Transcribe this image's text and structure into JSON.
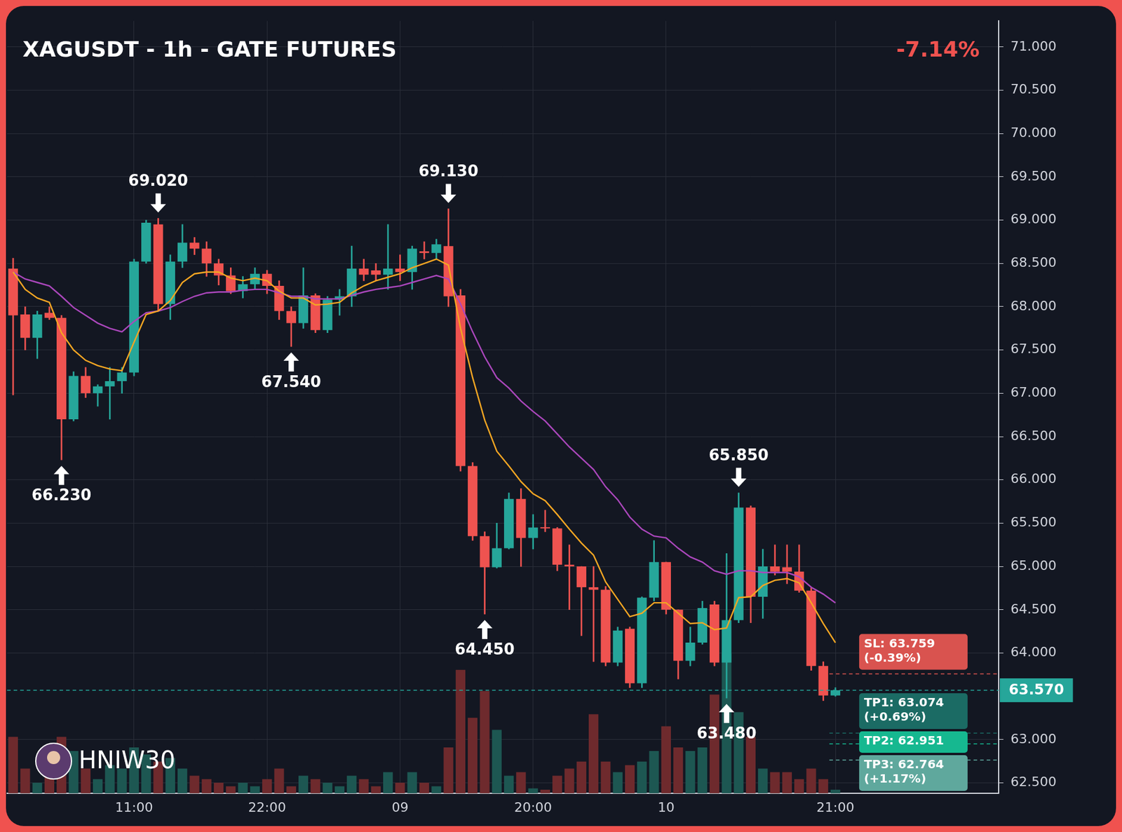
{
  "chart_data": {
    "type": "candlestick",
    "title": "XAGUSDT - 1h - GATE FUTURES",
    "change_label": "-7.14%",
    "watermark": "HNIW30",
    "categories": [
      null,
      null,
      null,
      null,
      null,
      null,
      null,
      null,
      null,
      null,
      "11:00",
      null,
      null,
      null,
      null,
      null,
      null,
      null,
      null,
      null,
      null,
      "22:00",
      null,
      null,
      null,
      null,
      null,
      null,
      null,
      null,
      null,
      null,
      "09",
      null,
      null,
      null,
      null,
      null,
      null,
      null,
      null,
      null,
      null,
      "20:00",
      null,
      null,
      null,
      null,
      null,
      null,
      null,
      null,
      null,
      null,
      "10",
      null,
      null,
      null,
      null,
      null,
      null,
      null,
      null,
      null,
      null,
      null,
      null,
      null,
      "21:00",
      null,
      null,
      null,
      null,
      null,
      null,
      null,
      null,
      null,
      null,
      null,
      null,
      null
    ],
    "series": [
      {
        "type": "candlestick",
        "open": [
          68.44,
          67.91,
          67.64,
          67.93,
          67.87,
          66.7,
          67.2,
          67.0,
          67.08,
          67.14,
          67.24,
          68.52,
          68.95,
          68.03,
          68.52,
          68.74,
          68.67,
          68.5,
          68.36,
          68.18,
          68.26,
          68.38,
          68.24,
          67.95,
          67.81,
          68.13,
          67.73,
          68.08,
          68.12,
          68.44,
          68.42,
          68.37,
          68.44,
          68.4,
          68.64,
          68.62,
          68.7,
          68.13,
          66.16,
          65.35,
          64.99,
          65.21,
          65.78,
          65.33,
          65.45,
          65.44,
          65.02,
          65.0,
          64.76,
          64.73,
          63.89,
          64.28,
          63.65,
          64.64,
          65.05,
          64.5,
          63.91,
          64.12,
          64.56,
          63.89,
          64.38,
          65.68,
          64.65,
          65.0,
          64.99,
          64.94,
          64.72,
          63.85,
          63.51,
          null,
          null,
          null,
          null,
          null,
          null,
          null,
          null,
          null,
          null,
          null,
          null,
          null
        ],
        "high": [
          68.56,
          68.0,
          67.95,
          68.0,
          67.9,
          67.25,
          67.3,
          67.1,
          67.3,
          67.3,
          68.55,
          69.0,
          69.02,
          68.6,
          68.95,
          68.8,
          68.75,
          68.55,
          68.45,
          68.35,
          68.45,
          68.42,
          68.3,
          68.0,
          68.45,
          68.15,
          68.12,
          68.2,
          68.7,
          68.55,
          68.5,
          68.95,
          68.6,
          68.7,
          68.75,
          68.78,
          69.13,
          68.2,
          66.2,
          65.4,
          65.5,
          65.85,
          65.9,
          65.6,
          65.65,
          65.45,
          65.25,
          65.0,
          65.0,
          64.77,
          64.3,
          64.3,
          64.65,
          65.3,
          65.05,
          64.5,
          64.3,
          64.6,
          64.6,
          65.15,
          65.85,
          65.7,
          65.2,
          65.25,
          65.25,
          65.25,
          64.75,
          63.9,
          63.6,
          null,
          null,
          null,
          null,
          null,
          null,
          null,
          null,
          null,
          null,
          null,
          null,
          null
        ],
        "low": [
          66.98,
          67.5,
          67.4,
          67.85,
          66.23,
          66.68,
          66.95,
          66.85,
          66.7,
          67.0,
          67.2,
          68.5,
          67.95,
          67.85,
          68.45,
          68.6,
          68.35,
          68.25,
          68.15,
          68.1,
          68.2,
          68.15,
          67.85,
          67.54,
          67.75,
          67.7,
          67.7,
          67.9,
          68.0,
          68.3,
          68.3,
          68.2,
          68.3,
          68.2,
          68.55,
          68.55,
          68.0,
          66.1,
          65.3,
          64.45,
          64.98,
          65.2,
          65.0,
          65.2,
          65.4,
          64.95,
          64.5,
          64.2,
          63.9,
          63.85,
          63.85,
          63.6,
          63.6,
          64.6,
          64.45,
          63.7,
          63.85,
          64.1,
          63.85,
          63.48,
          64.35,
          64.35,
          64.4,
          64.9,
          64.8,
          64.7,
          63.8,
          63.45,
          63.5,
          null,
          null,
          null,
          null,
          null,
          null,
          null,
          null,
          null,
          null,
          null,
          null,
          null
        ],
        "close": [
          67.9,
          67.64,
          67.91,
          67.87,
          66.7,
          67.2,
          67.0,
          67.08,
          67.14,
          67.24,
          68.52,
          68.97,
          68.03,
          68.52,
          68.74,
          68.67,
          68.5,
          68.36,
          68.18,
          68.26,
          68.38,
          68.24,
          67.95,
          67.81,
          68.13,
          67.73,
          68.08,
          68.12,
          68.44,
          68.37,
          68.37,
          68.44,
          68.4,
          68.67,
          68.62,
          68.72,
          68.12,
          66.16,
          65.35,
          64.99,
          65.21,
          65.78,
          65.33,
          65.45,
          65.44,
          65.02,
          65.0,
          64.76,
          64.73,
          63.89,
          64.26,
          63.65,
          64.64,
          65.05,
          64.5,
          63.91,
          64.12,
          64.52,
          63.89,
          64.38,
          65.68,
          64.65,
          65.0,
          64.94,
          64.94,
          64.72,
          63.85,
          63.51,
          63.57,
          null,
          null,
          null,
          null,
          null,
          null,
          null,
          null,
          null,
          null,
          null,
          null,
          null
        ]
      },
      {
        "type": "bar",
        "axis": "y2",
        "values": [
          80,
          35,
          15,
          25,
          80,
          60,
          35,
          20,
          40,
          35,
          65,
          55,
          45,
          50,
          35,
          25,
          20,
          15,
          10,
          15,
          10,
          20,
          35,
          10,
          25,
          20,
          15,
          10,
          25,
          20,
          10,
          30,
          15,
          30,
          15,
          10,
          65,
          175,
          107,
          145,
          90,
          25,
          30,
          7,
          5,
          25,
          35,
          45,
          112,
          45,
          30,
          40,
          45,
          60,
          95,
          65,
          60,
          65,
          140,
          198,
          115,
          80,
          35,
          30,
          30,
          20,
          35,
          20,
          5,
          null,
          null,
          null,
          null,
          null,
          null,
          null,
          null,
          null,
          null,
          null,
          null,
          null
        ]
      },
      {
        "type": "line",
        "color": "#f5a623",
        "values": [
          68.4,
          68.2,
          68.1,
          68.05,
          67.7,
          67.5,
          67.38,
          67.32,
          67.28,
          67.26,
          67.59,
          67.91,
          67.95,
          68.07,
          68.28,
          68.38,
          68.4,
          68.4,
          68.33,
          68.3,
          68.33,
          68.3,
          68.18,
          68.1,
          68.1,
          68.02,
          68.03,
          68.05,
          68.16,
          68.24,
          68.3,
          68.34,
          68.38,
          68.45,
          68.5,
          68.55,
          68.48,
          67.75,
          67.18,
          66.69,
          66.33,
          66.16,
          65.98,
          65.84,
          65.76,
          65.6,
          65.43,
          65.27,
          65.13,
          64.82,
          64.62,
          64.42,
          64.46,
          64.58,
          64.58,
          64.46,
          64.34,
          64.35,
          64.27,
          64.29,
          64.64,
          64.65,
          64.78,
          64.84,
          64.86,
          64.81,
          64.58,
          64.34,
          64.12,
          null,
          null,
          null,
          null,
          null,
          null,
          null,
          null,
          null,
          null,
          null,
          null,
          null
        ]
      },
      {
        "type": "line",
        "color": "#ab47bc",
        "values": [
          68.4,
          68.32,
          68.28,
          68.24,
          68.12,
          67.99,
          67.9,
          67.81,
          67.75,
          67.71,
          67.83,
          67.93,
          67.95,
          67.99,
          68.06,
          68.12,
          68.16,
          68.17,
          68.17,
          68.19,
          68.2,
          68.2,
          68.16,
          68.12,
          68.12,
          68.09,
          68.09,
          68.09,
          68.13,
          68.17,
          68.2,
          68.22,
          68.24,
          68.28,
          68.32,
          68.36,
          68.32,
          68.03,
          67.71,
          67.42,
          67.18,
          67.06,
          66.91,
          66.79,
          66.68,
          66.53,
          66.38,
          66.25,
          66.12,
          65.92,
          65.77,
          65.57,
          65.43,
          65.35,
          65.33,
          65.21,
          65.11,
          65.05,
          64.95,
          64.91,
          64.95,
          64.95,
          64.93,
          64.93,
          64.93,
          64.88,
          64.76,
          64.68,
          64.58,
          null,
          null,
          null,
          null,
          null,
          null,
          null,
          null,
          null,
          null,
          null,
          null,
          null
        ]
      }
    ],
    "ylim": [
      62.38,
      71.3
    ],
    "yticks": [
      {
        "value": 62.5,
        "label": "62.500"
      },
      {
        "value": 63.0,
        "label": "63.000"
      },
      {
        "value": 64.0,
        "label": "64.000"
      },
      {
        "value": 64.5,
        "label": "64.500"
      },
      {
        "value": 65.0,
        "label": "65.000"
      },
      {
        "value": 65.5,
        "label": "65.500"
      },
      {
        "value": 66.0,
        "label": "66.000"
      },
      {
        "value": 66.5,
        "label": "66.500"
      },
      {
        "value": 67.0,
        "label": "67.000"
      },
      {
        "value": 67.5,
        "label": "67.500"
      },
      {
        "value": 68.0,
        "label": "68.000"
      },
      {
        "value": 68.5,
        "label": "68.500"
      },
      {
        "value": 69.0,
        "label": "69.000"
      },
      {
        "value": 69.5,
        "label": "69.500"
      },
      {
        "value": 70.0,
        "label": "70.000"
      },
      {
        "value": 70.5,
        "label": "70.500"
      },
      {
        "value": 71.0,
        "label": "71.000"
      }
    ],
    "y2lim": [
      0,
      1095
    ],
    "grid": true,
    "annotations": [
      {
        "label": "66.230",
        "at": 4,
        "value": 66.23
      },
      {
        "label": "69.020",
        "at": 12,
        "value": 69.02
      },
      {
        "label": "67.540",
        "at": 23,
        "value": 67.54
      },
      {
        "label": "69.130",
        "at": 36,
        "value": 69.13
      },
      {
        "label": "64.450",
        "at": 39,
        "value": 64.45
      },
      {
        "label": "63.480",
        "at": 59,
        "value": 63.48
      },
      {
        "label": "65.850",
        "at": 60,
        "value": 65.85
      }
    ],
    "levels": [
      {
        "label": "SL: 63.759",
        "change": "(-0.39%)",
        "value": 63.759,
        "color": "#d9534f",
        "line_style": "dashed"
      },
      {
        "label": "TP1: 63.074",
        "change": "(+0.69%)",
        "value": 63.074,
        "color": "#1b6b64",
        "line_style": "dashed"
      },
      {
        "label": "TP2: 62.951",
        "value": 62.951,
        "color": "#16b890",
        "line_style": "dashed"
      },
      {
        "label": "TP3: 62.764",
        "change": "(+1.17%)",
        "value": 62.764,
        "color": "#5fa89d",
        "line_style": "dashed"
      }
    ],
    "last_price": {
      "value": 63.57,
      "label": "63.570"
    }
  }
}
